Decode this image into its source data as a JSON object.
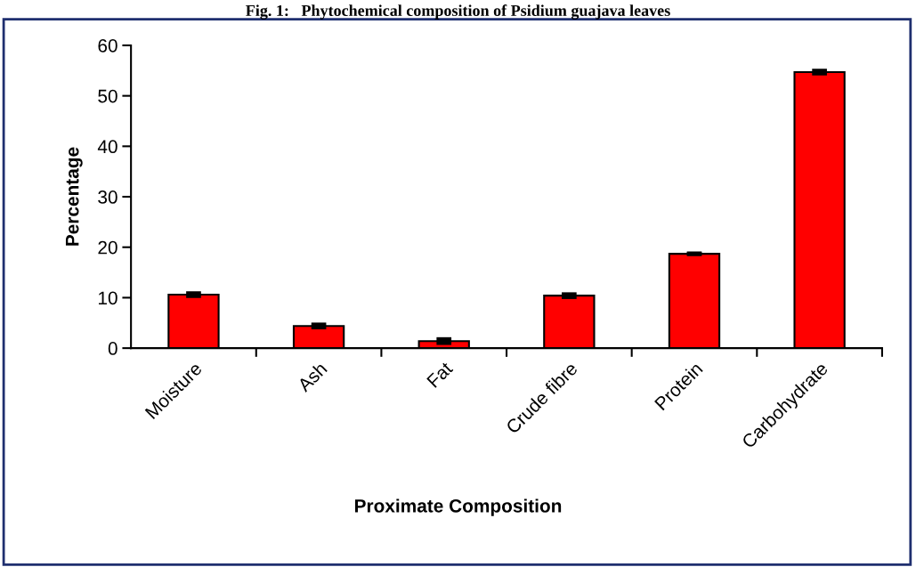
{
  "chart_data": {
    "type": "bar",
    "title": "Fig. 1:   Phytochemical composition of Psidium guajava leaves",
    "xlabel": "Proximate Composition",
    "ylabel": "Percentage",
    "categories": [
      "Moisture",
      "Ash",
      "Fat",
      "Crude fibre",
      "Protein",
      "Carbohydrate"
    ],
    "values": [
      10.6,
      4.4,
      1.4,
      10.4,
      18.7,
      54.7
    ],
    "errors": [
      0.3,
      0.3,
      0.4,
      0.3,
      0.1,
      0.3
    ],
    "color": "#ff0000",
    "ylim": [
      0,
      60
    ],
    "yticks": [
      0,
      10,
      20,
      30,
      40,
      50,
      60
    ],
    "grid": false,
    "legend": false
  }
}
